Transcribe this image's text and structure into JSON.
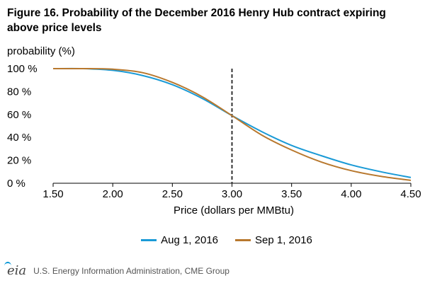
{
  "title": "Figure 16. Probability of the December 2016 Henry Hub contract expiring above price levels",
  "source": "U.S. Energy Information Administration, CME Group",
  "logo_text": "eia",
  "colors": {
    "aug": "#1a9ad6",
    "sep": "#b8782e",
    "axis": "#000000",
    "grid": "#d9d9d9",
    "marker": "#333333"
  },
  "chart_data": {
    "type": "line",
    "ylabel": "probability (%)",
    "xlabel": "Price (dollars per MMBtu)",
    "xlim": [
      1.5,
      4.5
    ],
    "ylim": [
      0,
      100
    ],
    "x_ticks": [
      "1.50",
      "2.00",
      "2.50",
      "3.00",
      "3.50",
      "4.00",
      "4.50"
    ],
    "y_ticks": [
      "100 %",
      "80 %",
      "60 %",
      "40 %",
      "20 %",
      "0 %"
    ],
    "y_tick_values": [
      100,
      80,
      60,
      40,
      20,
      0
    ],
    "x_tick_values": [
      1.5,
      2.0,
      2.5,
      3.0,
      3.5,
      4.0,
      4.5
    ],
    "reference_line_x": 3.0,
    "grid": false,
    "legend_position": "bottom",
    "series": [
      {
        "name": "Aug 1, 2016",
        "color_key": "aug",
        "x": [
          1.5,
          1.75,
          2.0,
          2.25,
          2.5,
          2.75,
          3.0,
          3.25,
          3.5,
          3.75,
          4.0,
          4.25,
          4.5
        ],
        "y": [
          100,
          100,
          98.5,
          94,
          86,
          74,
          59,
          45,
          33,
          24,
          16,
          10,
          5
        ]
      },
      {
        "name": "Sep 1, 2016",
        "color_key": "sep",
        "x": [
          1.5,
          1.75,
          2.0,
          2.25,
          2.5,
          2.75,
          3.0,
          3.25,
          3.5,
          3.75,
          4.0,
          4.25,
          4.5
        ],
        "y": [
          100,
          100,
          99.5,
          96.5,
          88,
          75.5,
          59,
          42,
          29,
          18.5,
          11,
          6,
          2.5
        ]
      }
    ]
  }
}
